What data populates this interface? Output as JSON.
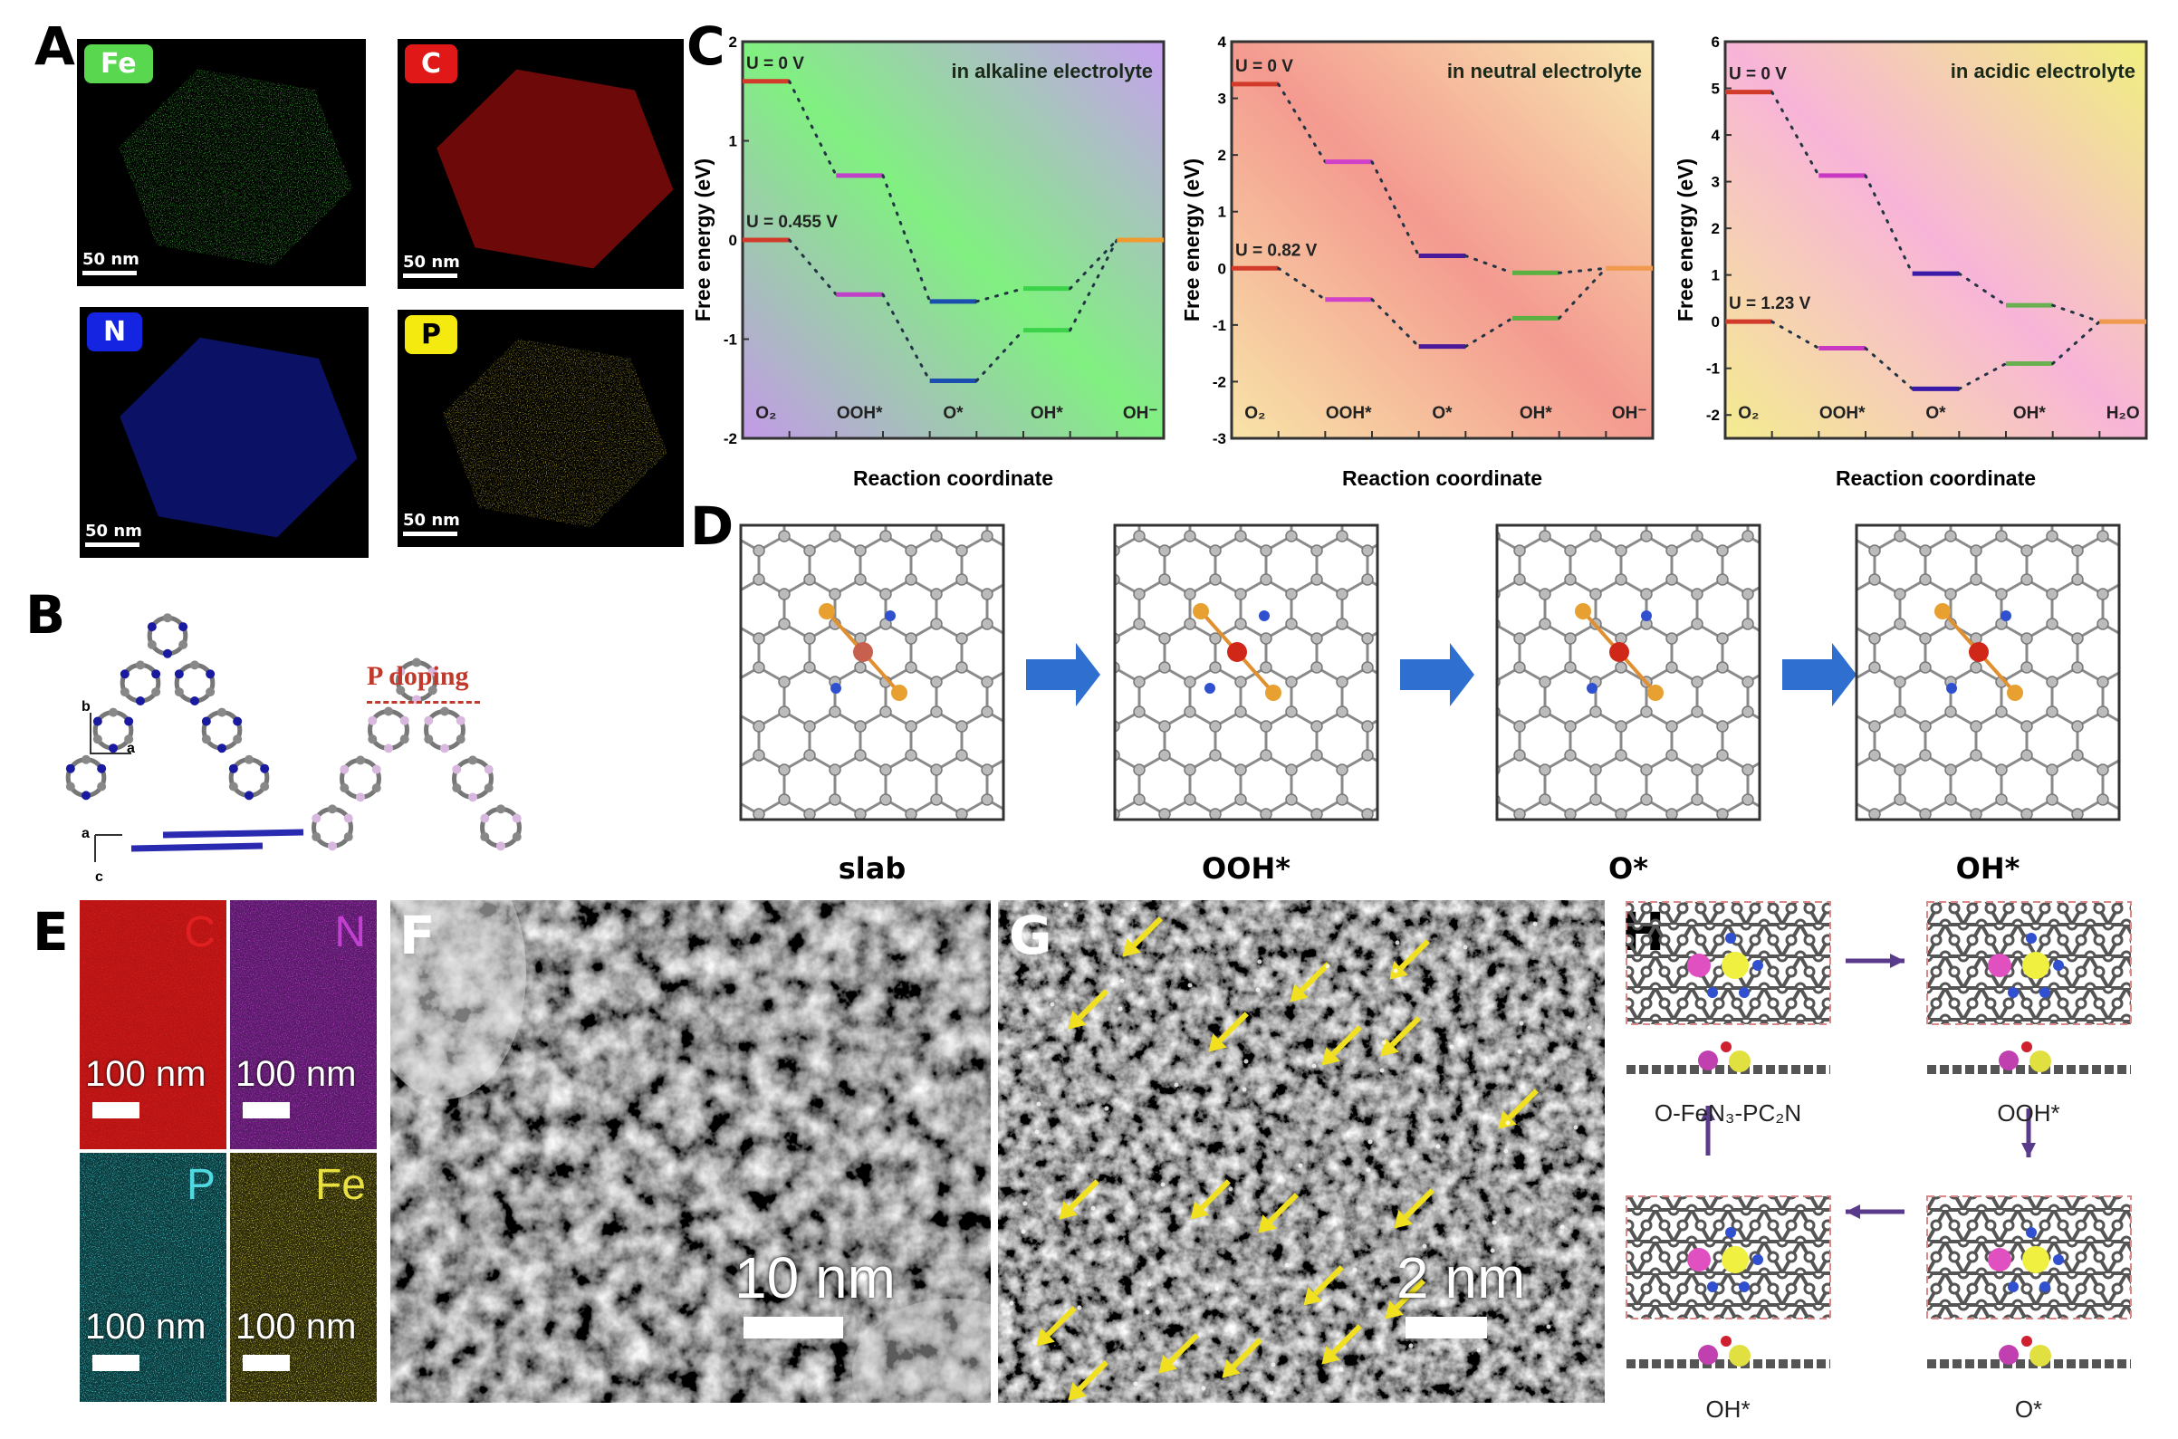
{
  "panel_labels": {
    "a": "A",
    "b": "B",
    "c": "C",
    "d": "D",
    "e": "E",
    "f": "F",
    "g": "G",
    "h": "H"
  },
  "panel_a": {
    "tiles": [
      {
        "element": "Fe",
        "color": "#59d84f",
        "dot": "#3fbf3a",
        "scale": "50 nm"
      },
      {
        "element": "C",
        "color": "#e01818",
        "dot": "#c81010",
        "scale": "50 nm"
      },
      {
        "element": "N",
        "color": "#1424e0",
        "dot": "#1420b8",
        "scale": "50 nm"
      },
      {
        "element": "P",
        "color": "#f4ea10",
        "dot": "#b8a828",
        "scale": "50 nm"
      }
    ]
  },
  "panel_b": {
    "doping_label": "P doping",
    "axes_top": [
      "b",
      "a"
    ],
    "axes_bottom": [
      "a",
      "c"
    ]
  },
  "chart_data": [
    {
      "type": "line",
      "annotation": "in alkaline electrolyte",
      "xlabel": "Reaction coordinate",
      "ylabel": "Free energy (eV)",
      "categories": [
        "O₂",
        "OOH*",
        "O*",
        "OH*",
        "OH⁻"
      ],
      "ylim": [
        -2,
        2
      ],
      "yticks": [
        -2,
        -1,
        0,
        1,
        2
      ],
      "grid": false,
      "level_colors": [
        "#d23a2a",
        "#c040c8",
        "#1a4fb0",
        "#3cd24a",
        "#f09a30"
      ],
      "background": [
        "#c39ae8",
        "#80f080",
        "#c8a0f0"
      ],
      "series": [
        {
          "name": "U = 0 V",
          "values": [
            1.6,
            0.65,
            -0.62,
            -0.49,
            0
          ]
        },
        {
          "name": "U = 0.455 V",
          "values": [
            0,
            -0.55,
            -1.42,
            -0.91,
            0
          ]
        }
      ]
    },
    {
      "type": "line",
      "annotation": "in neutral electrolyte",
      "xlabel": "Reaction coordinate",
      "ylabel": "Free energy (eV)",
      "categories": [
        "O₂",
        "OOH*",
        "O*",
        "OH*",
        "OH⁻"
      ],
      "ylim": [
        -3,
        4
      ],
      "yticks": [
        -3,
        -2,
        -1,
        0,
        1,
        2,
        3,
        4
      ],
      "grid": false,
      "level_colors": [
        "#d23a2a",
        "#d040c8",
        "#4a1a9a",
        "#5ab040",
        "#f09a50"
      ],
      "background": [
        "#f8e4a8",
        "#f49a90",
        "#f8e8b0"
      ],
      "series": [
        {
          "name": "U = 0 V",
          "values": [
            3.25,
            1.88,
            0.22,
            -0.08,
            0
          ]
        },
        {
          "name": "U = 0.82 V",
          "values": [
            0,
            -0.55,
            -1.38,
            -0.88,
            0
          ]
        }
      ]
    },
    {
      "type": "line",
      "annotation": "in acidic electrolyte",
      "xlabel": "Reaction coordinate",
      "ylabel": "Free energy (eV)",
      "categories": [
        "O₂",
        "OOH*",
        "O*",
        "OH*",
        "H₂O"
      ],
      "ylim": [
        -2.5,
        6
      ],
      "yticks": [
        -2,
        -1,
        0,
        1,
        2,
        3,
        4,
        5,
        6
      ],
      "grid": false,
      "level_colors": [
        "#d23a2a",
        "#c838c0",
        "#3a1aa8",
        "#6ab050",
        "#f09a50"
      ],
      "background": [
        "#f4ec90",
        "#f8b4d8",
        "#f0f080"
      ],
      "series": [
        {
          "name": "U = 0 V",
          "values": [
            4.92,
            3.13,
            1.03,
            0.35,
            0
          ]
        },
        {
          "name": "U = 1.23 V",
          "values": [
            0,
            -0.57,
            -1.44,
            -0.9,
            0
          ]
        }
      ]
    }
  ],
  "panel_d": {
    "labels": [
      "slab",
      "OOH*",
      "O*",
      "OH*"
    ],
    "arrow_color": "#2f6fd0"
  },
  "panel_e": {
    "tiles": [
      {
        "element": "C",
        "color": "#e02020",
        "bg": "#b81414",
        "scale": "100 nm"
      },
      {
        "element": "N",
        "color": "#c040d0",
        "bg": "#5a1a6a",
        "scale": "100 nm"
      },
      {
        "element": "P",
        "color": "#50d8e0",
        "bg": "#0a3a3c",
        "scale": "100 nm"
      },
      {
        "element": "Fe",
        "color": "#e8e040",
        "bg": "#2a2808",
        "scale": "100 nm"
      }
    ]
  },
  "panel_f": {
    "scale": "10 nm"
  },
  "panel_g": {
    "scale": "2 nm",
    "arrow_color": "#f0e020"
  },
  "panel_h": {
    "labels": [
      "O-FeN₃-PC₂N",
      "OOH*",
      "OH*",
      "O*"
    ],
    "arrow_color": "#5a3a8a"
  }
}
